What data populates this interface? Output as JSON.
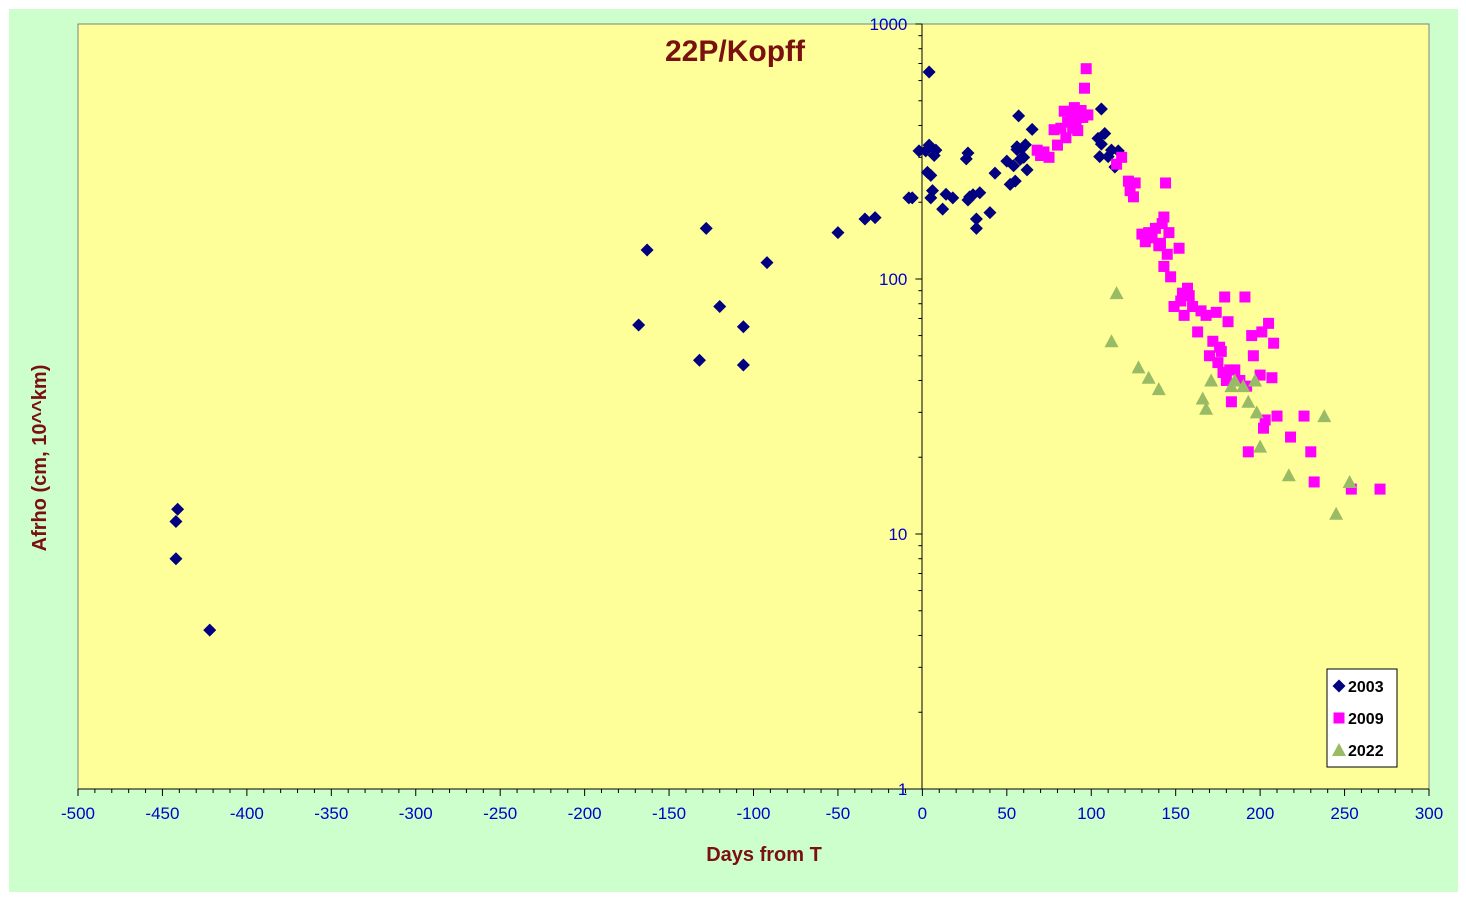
{
  "chart_data": {
    "type": "scatter",
    "title": "22P/Kopff",
    "xlabel": "Days from  T",
    "ylabel": "Afrho (cm, 10^^km)",
    "xlim": [
      -500,
      300
    ],
    "ylim": [
      1,
      1000
    ],
    "yscale": "log",
    "x_ticks": [
      "-500",
      "-450",
      "-400",
      "-350",
      "-300",
      "-250",
      "-200",
      "-150",
      "-100",
      "-50",
      "0",
      "50",
      "100",
      "150",
      "200",
      "250",
      "300"
    ],
    "y_ticks": [
      "1",
      "10",
      "100",
      "1000"
    ],
    "legend_position": "bottom-right",
    "colors": {
      "outer_bg": "#ccffcc",
      "plot_bg": "#ffff99",
      "axis_text": "#0000cc",
      "title_text": "#7a1010"
    },
    "series": [
      {
        "name": "2003",
        "marker": "diamond",
        "color": "#000080",
        "points": [
          [
            -442,
            11.2
          ],
          [
            -441,
            12.5
          ],
          [
            -442,
            8.0
          ],
          [
            -422,
            4.2
          ],
          [
            -168,
            66
          ],
          [
            -163,
            130
          ],
          [
            -132,
            48
          ],
          [
            -128,
            158
          ],
          [
            -120,
            78
          ],
          [
            -106,
            65
          ],
          [
            -106,
            46
          ],
          [
            -92,
            116
          ],
          [
            -50,
            152
          ],
          [
            -34,
            172
          ],
          [
            -28,
            174
          ],
          [
            -8,
            208
          ],
          [
            -6,
            208
          ],
          [
            -2,
            318
          ],
          [
            2,
            318
          ],
          [
            3,
            262
          ],
          [
            4,
            648
          ],
          [
            4,
            335
          ],
          [
            5,
            208
          ],
          [
            5,
            255
          ],
          [
            6,
            222
          ],
          [
            7,
            305
          ],
          [
            8,
            320
          ],
          [
            12,
            188
          ],
          [
            14,
            215
          ],
          [
            18,
            208
          ],
          [
            26,
            296
          ],
          [
            27,
            312
          ],
          [
            27,
            204
          ],
          [
            28,
            210
          ],
          [
            30,
            214
          ],
          [
            32,
            158
          ],
          [
            32,
            172
          ],
          [
            34,
            218
          ],
          [
            40,
            182
          ],
          [
            43,
            260
          ],
          [
            50,
            290
          ],
          [
            52,
            235
          ],
          [
            54,
            278
          ],
          [
            55,
            242
          ],
          [
            56,
            330
          ],
          [
            56,
            322
          ],
          [
            57,
            436
          ],
          [
            58,
            295
          ],
          [
            59,
            325
          ],
          [
            60,
            300
          ],
          [
            61,
            336
          ],
          [
            62,
            268
          ],
          [
            65,
            386
          ],
          [
            104,
            356
          ],
          [
            105,
            302
          ],
          [
            106,
            464
          ],
          [
            106,
            338
          ],
          [
            108,
            372
          ],
          [
            110,
            302
          ],
          [
            112,
            320
          ],
          [
            114,
            275
          ],
          [
            116,
            318
          ]
        ]
      },
      {
        "name": "2009",
        "marker": "square",
        "color": "#ff00ff",
        "points": [
          [
            68,
            320
          ],
          [
            70,
            305
          ],
          [
            72,
            315
          ],
          [
            75,
            300
          ],
          [
            78,
            385
          ],
          [
            80,
            335
          ],
          [
            82,
            390
          ],
          [
            84,
            455
          ],
          [
            85,
            358
          ],
          [
            86,
            412
          ],
          [
            88,
            430
          ],
          [
            89,
            390
          ],
          [
            90,
            470
          ],
          [
            91,
            405
          ],
          [
            92,
            382
          ],
          [
            93,
            445
          ],
          [
            94,
            458
          ],
          [
            95,
            430
          ],
          [
            96,
            560
          ],
          [
            97,
            668
          ],
          [
            98,
            440
          ],
          [
            115,
            282
          ],
          [
            118,
            300
          ],
          [
            122,
            242
          ],
          [
            123,
            222
          ],
          [
            125,
            210
          ],
          [
            126,
            238
          ],
          [
            130,
            150
          ],
          [
            132,
            140
          ],
          [
            134,
            152
          ],
          [
            136,
            145
          ],
          [
            138,
            158
          ],
          [
            140,
            135
          ],
          [
            141,
            138
          ],
          [
            142,
            165
          ],
          [
            143,
            175
          ],
          [
            143,
            112
          ],
          [
            144,
            238
          ],
          [
            145,
            125
          ],
          [
            146,
            152
          ],
          [
            147,
            102
          ],
          [
            149,
            78
          ],
          [
            152,
            132
          ],
          [
            153,
            82
          ],
          [
            154,
            88
          ],
          [
            155,
            72
          ],
          [
            157,
            92
          ],
          [
            158,
            86
          ],
          [
            160,
            78
          ],
          [
            163,
            62
          ],
          [
            165,
            75
          ],
          [
            168,
            72
          ],
          [
            170,
            50
          ],
          [
            172,
            57
          ],
          [
            174,
            74
          ],
          [
            175,
            47
          ],
          [
            176,
            54
          ],
          [
            177,
            52
          ],
          [
            178,
            43
          ],
          [
            179,
            85
          ],
          [
            180,
            40
          ],
          [
            181,
            68
          ],
          [
            182,
            44
          ],
          [
            183,
            33
          ],
          [
            185,
            44
          ],
          [
            188,
            40
          ],
          [
            191,
            85
          ],
          [
            192,
            38
          ],
          [
            193,
            21
          ],
          [
            195,
            60
          ],
          [
            196,
            50
          ],
          [
            200,
            42
          ],
          [
            201,
            62
          ],
          [
            202,
            26
          ],
          [
            203,
            28
          ],
          [
            205,
            67
          ],
          [
            207,
            41
          ],
          [
            208,
            56
          ],
          [
            210,
            29
          ],
          [
            218,
            24
          ],
          [
            226,
            29
          ],
          [
            230,
            21
          ],
          [
            232,
            16
          ],
          [
            254,
            15
          ],
          [
            271,
            15
          ]
        ]
      },
      {
        "name": "2022",
        "marker": "triangle",
        "color": "#99bb66",
        "points": [
          [
            112,
            57
          ],
          [
            115,
            88
          ],
          [
            128,
            45
          ],
          [
            134,
            41
          ],
          [
            140,
            37
          ],
          [
            166,
            34
          ],
          [
            168,
            31
          ],
          [
            171,
            40
          ],
          [
            183,
            38
          ],
          [
            185,
            40
          ],
          [
            190,
            38
          ],
          [
            193,
            33
          ],
          [
            197,
            40
          ],
          [
            198,
            30
          ],
          [
            200,
            22
          ],
          [
            217,
            17
          ],
          [
            238,
            29
          ],
          [
            245,
            12
          ],
          [
            253,
            16
          ]
        ]
      }
    ]
  }
}
